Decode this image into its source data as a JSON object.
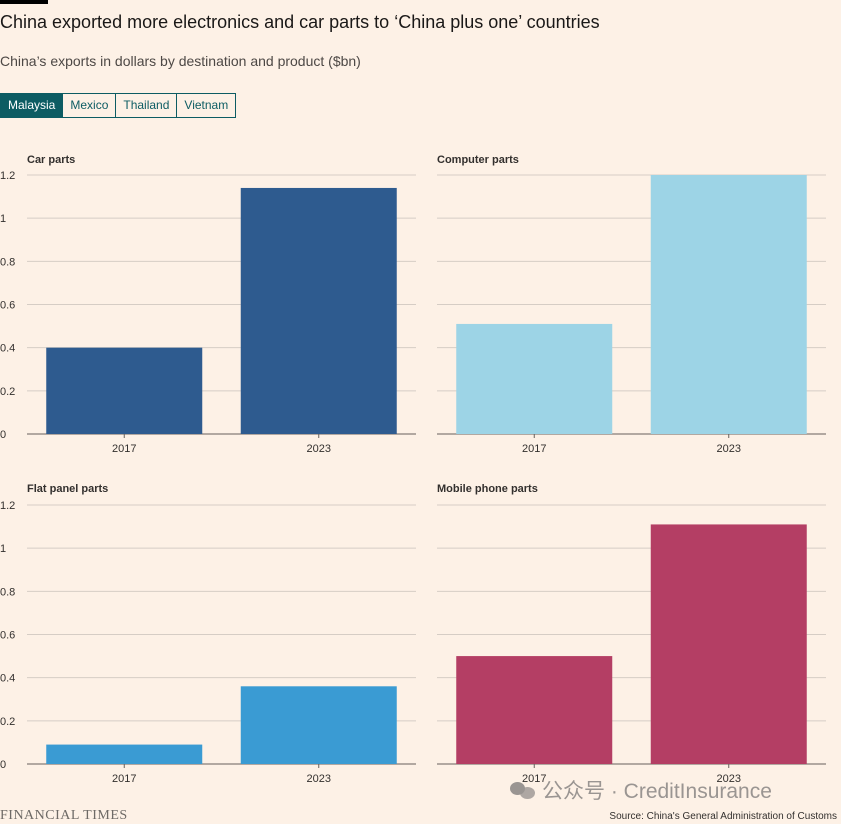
{
  "header": {
    "title": "China exported more electronics and car parts to ‘China plus one’ countries",
    "subtitle": "China’s exports in dollars by destination and product ($bn)"
  },
  "tabs": [
    {
      "label": "Malaysia",
      "active": true
    },
    {
      "label": "Mexico",
      "active": false
    },
    {
      "label": "Thailand",
      "active": false
    },
    {
      "label": "Vietnam",
      "active": false
    }
  ],
  "footer": {
    "brand": "FINANCIAL TIMES",
    "source": "Source: China's General Administration of Customs",
    "watermark": "公众号 · CreditInsurance"
  },
  "colors": {
    "car_parts": "#2e5b8f",
    "computer_parts": "#9dd4e6",
    "flat_panel_parts": "#3a9bd3",
    "mobile_phone_parts": "#b43e64",
    "active_tab": "#0d5c63"
  },
  "chart_data": [
    {
      "type": "bar",
      "title": "Car parts",
      "categories": [
        "2017",
        "2023"
      ],
      "values": [
        0.4,
        1.14
      ],
      "ylim": [
        0,
        1.2
      ],
      "yticks": [
        "0",
        "0.2",
        "0.4",
        "0.6",
        "0.8",
        "1",
        "1.2"
      ],
      "color": "#2e5b8f",
      "grid": true
    },
    {
      "type": "bar",
      "title": "Computer parts",
      "categories": [
        "2017",
        "2023"
      ],
      "values": [
        0.51,
        1.2
      ],
      "ylim": [
        0,
        1.2
      ],
      "yticks": [
        "0",
        "0.2",
        "0.4",
        "0.6",
        "0.8",
        "1",
        "1.2"
      ],
      "color": "#9dd4e6",
      "grid": true
    },
    {
      "type": "bar",
      "title": "Flat panel parts",
      "categories": [
        "2017",
        "2023"
      ],
      "values": [
        0.09,
        0.36
      ],
      "ylim": [
        0,
        1.2
      ],
      "yticks": [
        "0",
        "0.2",
        "0.4",
        "0.6",
        "0.8",
        "1",
        "1.2"
      ],
      "color": "#3a9bd3",
      "grid": true
    },
    {
      "type": "bar",
      "title": "Mobile phone parts",
      "categories": [
        "2017",
        "2023"
      ],
      "values": [
        0.5,
        1.11
      ],
      "ylim": [
        0,
        1.2
      ],
      "yticks": [
        "0",
        "0.2",
        "0.4",
        "0.6",
        "0.8",
        "1",
        "1.2"
      ],
      "color": "#b43e64",
      "grid": true
    }
  ]
}
